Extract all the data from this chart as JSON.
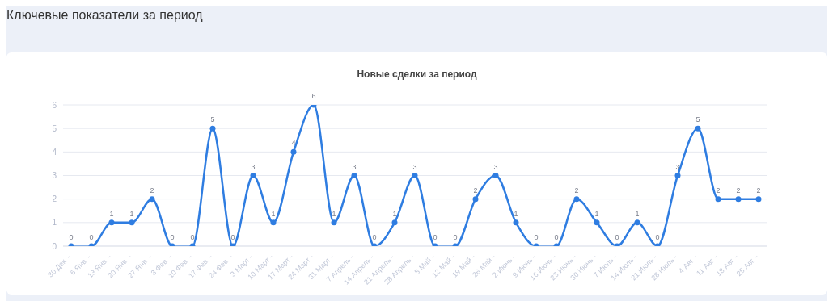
{
  "chart_data": {
    "type": "line",
    "title": "Новые сделки за период",
    "annotations": [
      "Ключевые показатели за период"
    ],
    "categories": [
      "30 Дек. -",
      "6 Янв. -",
      "13 Янв. -",
      "20 Янв. -",
      "27 Янв. -",
      "3 Фев. -",
      "10 Фев. -",
      "17 Фев. -",
      "24 Фев. -",
      "3 Март -",
      "10 Март -",
      "17 Март -",
      "24 Март -",
      "31 Март -",
      "7 Апрель -",
      "14 Апрель -",
      "21 Апрель -",
      "28 Апрель -",
      "5 Май -",
      "12 Май -",
      "19 Май -",
      "26 Май -",
      "2 Июнь -",
      "9 Июнь -",
      "16 Июнь -",
      "23 Июнь -",
      "30 Июнь -",
      "7 Июль -",
      "14 Июль -",
      "21 Июль -",
      "28 Июль -",
      "4 Авг. -",
      "11 Авг. -",
      "18 Авг. -",
      "25 Авг. -"
    ],
    "series": [
      {
        "color": "#2f7de1",
        "values": [
          0,
          0,
          1,
          1,
          2,
          0,
          0,
          5,
          0,
          3,
          1,
          4,
          6,
          1,
          3,
          0,
          1,
          3,
          0,
          0,
          2,
          3,
          1,
          0,
          0,
          2,
          1,
          0,
          1,
          0,
          3,
          5,
          2,
          2,
          2
        ]
      }
    ],
    "ylim": [
      0,
      6
    ],
    "yticks": [
      0,
      1,
      2,
      3,
      4,
      5,
      6
    ],
    "grid": "y",
    "data_labels": true,
    "marker": "circle",
    "legend": false
  }
}
